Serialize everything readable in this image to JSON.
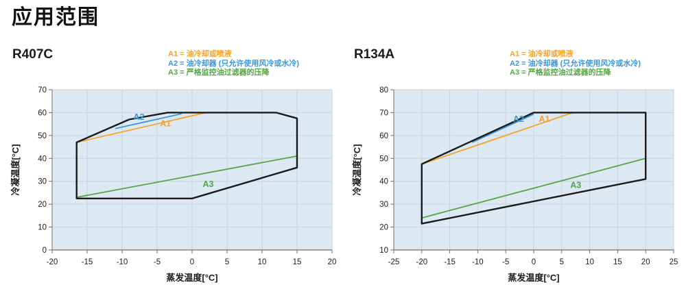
{
  "title": "应用范围",
  "legend": {
    "items": [
      {
        "id": "A1",
        "text": "A1 = 油冷却或喷液",
        "color": "#F5A228"
      },
      {
        "id": "A2",
        "text": "A2 = 油冷却器 (只允许使用风冷或水冷)",
        "color": "#3B97D3"
      },
      {
        "id": "A3",
        "text": "A3 = 严格监控油过滤器的压降",
        "color": "#54A546"
      }
    ]
  },
  "colors": {
    "plot_background": "#dce8f2",
    "gridline": "#c6d4e1",
    "axis": "#6f6f6f",
    "envelope": "#1a1a1a"
  },
  "chart_data": [
    {
      "type": "line",
      "title": "R407C",
      "xlabel": "蒸发温度[°C]",
      "ylabel": "冷凝温度[°C]",
      "xlim": [
        -20,
        20
      ],
      "ylim": [
        0,
        70
      ],
      "x_ticks": [
        -20,
        -15,
        -10,
        -5,
        0,
        5,
        10,
        15,
        20
      ],
      "y_ticks": [
        0,
        10,
        20,
        30,
        40,
        50,
        60,
        70
      ],
      "grid": true,
      "envelope": {
        "name": "operating-envelope",
        "color": "#1a1a1a",
        "points": [
          [
            -16.5,
            47
          ],
          [
            -9,
            57
          ],
          [
            -3.5,
            60
          ],
          [
            12,
            60
          ],
          [
            15,
            57.5
          ],
          [
            15,
            36
          ],
          [
            0,
            22.5
          ],
          [
            -16.5,
            22.5
          ]
        ]
      },
      "series": [
        {
          "name": "A1",
          "color": "#F5A228",
          "points": [
            [
              -16.5,
              47
            ],
            [
              2,
              60
            ]
          ],
          "label": {
            "text": "A1",
            "x": -3.8,
            "y": 54
          }
        },
        {
          "name": "A2",
          "color": "#3B97D3",
          "points": [
            [
              -11,
              53
            ],
            [
              -1.5,
              59.5
            ]
          ],
          "label": {
            "text": "A2",
            "x": -7.6,
            "y": 56.8
          }
        },
        {
          "name": "A3",
          "color": "#54A546",
          "points": [
            [
              -16.5,
              23
            ],
            [
              15,
              41
            ]
          ],
          "label": {
            "text": "A3",
            "x": 2.3,
            "y": 27.5
          }
        }
      ]
    },
    {
      "type": "line",
      "title": "R134A",
      "xlabel": "蒸发温度[°C]",
      "ylabel": "冷凝温度[°C]",
      "xlim": [
        -25,
        25
      ],
      "ylim": [
        10,
        80
      ],
      "x_ticks": [
        -25,
        -20,
        -15,
        -10,
        -5,
        0,
        5,
        10,
        15,
        20,
        25
      ],
      "y_ticks": [
        10,
        20,
        30,
        40,
        50,
        60,
        70,
        80
      ],
      "grid": true,
      "envelope": {
        "name": "operating-envelope",
        "color": "#1a1a1a",
        "points": [
          [
            -20,
            47.5
          ],
          [
            0,
            70
          ],
          [
            20,
            70
          ],
          [
            20,
            41
          ],
          [
            -20,
            21.5
          ]
        ]
      },
      "series": [
        {
          "name": "A1",
          "color": "#F5A228",
          "points": [
            [
              -20,
              47.5
            ],
            [
              7,
              70
            ]
          ],
          "label": {
            "text": "A1",
            "x": 1.9,
            "y": 66
          }
        },
        {
          "name": "A2",
          "color": "#3B97D3",
          "points": [
            [
              -11,
              57
            ],
            [
              0,
              69.3
            ]
          ],
          "label": {
            "text": "A2",
            "x": -2.7,
            "y": 66
          }
        },
        {
          "name": "A3",
          "color": "#54A546",
          "points": [
            [
              -20,
              24
            ],
            [
              20,
              50
            ]
          ],
          "label": {
            "text": "A3",
            "x": 7.5,
            "y": 37
          }
        }
      ]
    }
  ]
}
